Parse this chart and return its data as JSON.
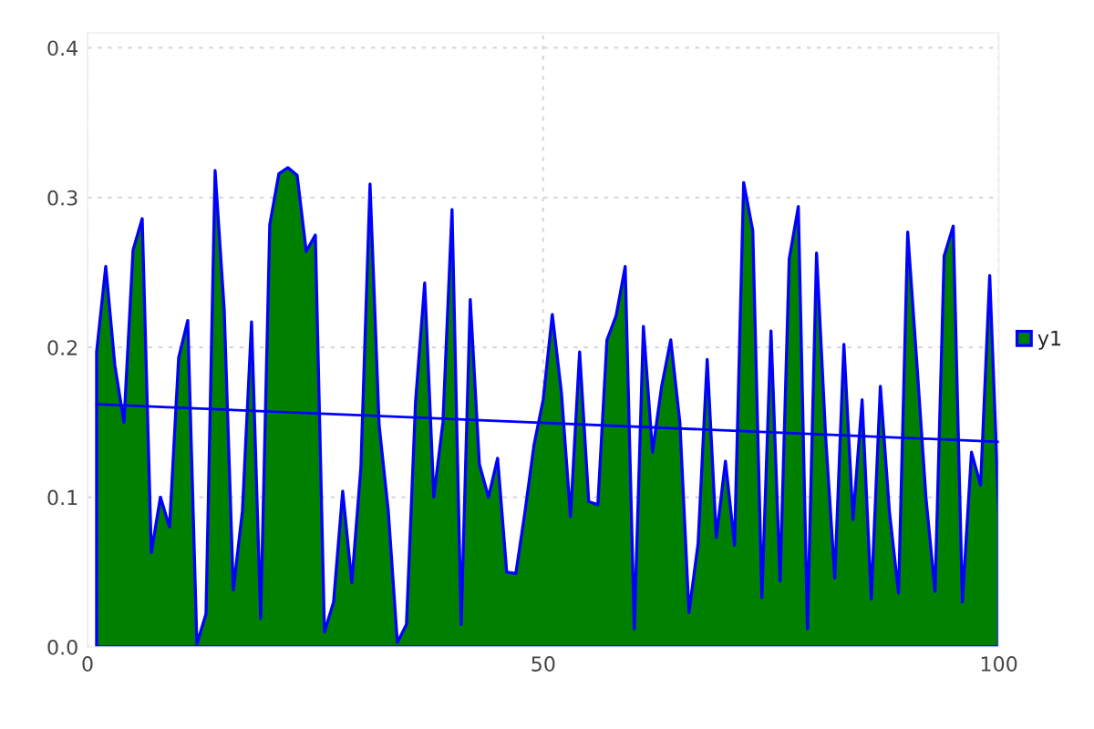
{
  "chart_data": {
    "type": "area",
    "x": [
      1,
      2,
      3,
      4,
      5,
      6,
      7,
      8,
      9,
      10,
      11,
      12,
      13,
      14,
      15,
      16,
      17,
      18,
      19,
      20,
      21,
      22,
      23,
      24,
      25,
      26,
      27,
      28,
      29,
      30,
      31,
      32,
      33,
      34,
      35,
      36,
      37,
      38,
      39,
      40,
      41,
      42,
      43,
      44,
      45,
      46,
      47,
      48,
      49,
      50,
      51,
      52,
      53,
      54,
      55,
      56,
      57,
      58,
      59,
      60,
      61,
      62,
      63,
      64,
      65,
      66,
      67,
      68,
      69,
      70,
      71,
      72,
      73,
      74,
      75,
      76,
      77,
      78,
      79,
      80,
      81,
      82,
      83,
      84,
      85,
      86,
      87,
      88,
      89,
      90,
      91,
      92,
      93,
      94,
      95,
      96,
      97,
      98,
      99,
      100
    ],
    "series": [
      {
        "name": "y1",
        "type": "area",
        "color": "#008000",
        "values": [
          0.197,
          0.254,
          0.188,
          0.15,
          0.265,
          0.286,
          0.063,
          0.1,
          0.08,
          0.193,
          0.218,
          0.002,
          0.022,
          0.318,
          0.225,
          0.038,
          0.091,
          0.217,
          0.019,
          0.282,
          0.316,
          0.32,
          0.315,
          0.264,
          0.275,
          0.01,
          0.03,
          0.104,
          0.043,
          0.12,
          0.309,
          0.148,
          0.091,
          0.003,
          0.015,
          0.164,
          0.243,
          0.1,
          0.15,
          0.292,
          0.015,
          0.232,
          0.122,
          0.1,
          0.126,
          0.05,
          0.049,
          0.09,
          0.135,
          0.165,
          0.222,
          0.17,
          0.087,
          0.197,
          0.097,
          0.095,
          0.205,
          0.221,
          0.254,
          0.012,
          0.214,
          0.13,
          0.174,
          0.205,
          0.15,
          0.023,
          0.069,
          0.192,
          0.073,
          0.124,
          0.068,
          0.31,
          0.278,
          0.033,
          0.211,
          0.044,
          0.259,
          0.294,
          0.012,
          0.263,
          0.14,
          0.046,
          0.202,
          0.085,
          0.165,
          0.032,
          0.174,
          0.09,
          0.036,
          0.277,
          0.19,
          0.1,
          0.037,
          0.261,
          0.281,
          0.03,
          0.13,
          0.108,
          0.248,
          0.088
        ]
      },
      {
        "type": "line",
        "color": "#0000ff",
        "x": [
          1,
          100
        ],
        "values": [
          0.162,
          0.137
        ]
      }
    ],
    "xlim": [
      0,
      100
    ],
    "xticks": [
      0,
      50,
      100
    ],
    "ylim": [
      0,
      0.41
    ],
    "yticks": [
      {
        "value": 0,
        "label": "0.0"
      },
      {
        "value": 0.1,
        "label": "0.1"
      },
      {
        "value": 0.2,
        "label": "0.2"
      },
      {
        "value": 0.3,
        "label": "0.3"
      },
      {
        "value": 0.4,
        "label": "0.4"
      }
    ],
    "grid": true,
    "legend": "right"
  }
}
